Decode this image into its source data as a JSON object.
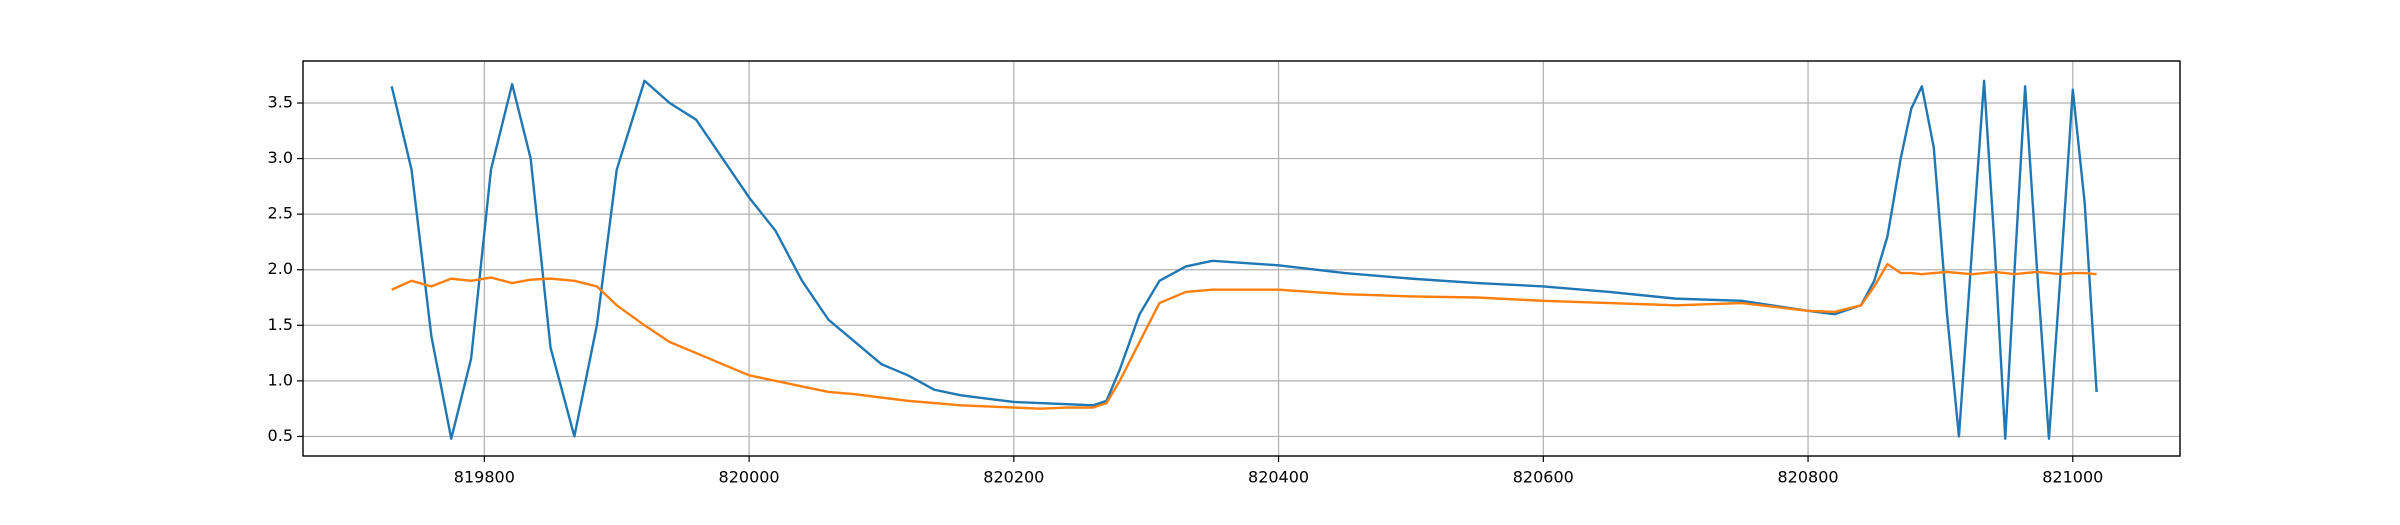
{
  "chart_data": {
    "type": "line",
    "x": [
      819730,
      819745,
      819760,
      819775,
      819790,
      819805,
      819821,
      819835,
      819850,
      819868,
      819885,
      819900,
      819921,
      819940,
      819960,
      819980,
      820000,
      820020,
      820040,
      820060,
      820080,
      820100,
      820120,
      820140,
      820160,
      820180,
      820200,
      820220,
      820240,
      820260,
      820270,
      820280,
      820295,
      820310,
      820330,
      820350,
      820400,
      820450,
      820500,
      820550,
      820600,
      820650,
      820700,
      820750,
      820800,
      820820,
      820840,
      820850,
      820860,
      820870,
      820878,
      820886,
      820895,
      820905,
      820914,
      820924,
      820933,
      820941,
      820949,
      820956,
      820964,
      820973,
      820982,
      820991,
      821000,
      821009,
      821018
    ],
    "series": [
      {
        "color": "#1f77b4",
        "values": [
          3.65,
          2.9,
          1.4,
          0.48,
          1.2,
          2.9,
          3.67,
          3.0,
          1.3,
          0.5,
          1.5,
          2.9,
          3.7,
          3.5,
          3.35,
          3.0,
          2.65,
          2.35,
          1.9,
          1.55,
          1.35,
          1.15,
          1.05,
          0.92,
          0.87,
          0.84,
          0.81,
          0.8,
          0.79,
          0.78,
          0.82,
          1.1,
          1.6,
          1.9,
          2.03,
          2.08,
          2.04,
          1.97,
          1.92,
          1.88,
          1.85,
          1.8,
          1.74,
          1.72,
          1.63,
          1.6,
          1.68,
          1.9,
          2.3,
          3.0,
          3.45,
          3.65,
          3.1,
          1.6,
          0.5,
          2.2,
          3.7,
          2.2,
          0.48,
          2.0,
          3.65,
          2.0,
          0.48,
          2.0,
          3.62,
          2.6,
          0.9
        ]
      },
      {
        "color": "#ff7f0e",
        "values": [
          1.82,
          1.9,
          1.85,
          1.92,
          1.9,
          1.93,
          1.88,
          1.91,
          1.92,
          1.9,
          1.85,
          1.68,
          1.5,
          1.35,
          1.25,
          1.15,
          1.05,
          1.0,
          0.95,
          0.9,
          0.88,
          0.85,
          0.82,
          0.8,
          0.78,
          0.77,
          0.76,
          0.75,
          0.76,
          0.76,
          0.8,
          1.0,
          1.35,
          1.7,
          1.8,
          1.82,
          1.82,
          1.78,
          1.76,
          1.75,
          1.72,
          1.7,
          1.68,
          1.7,
          1.63,
          1.62,
          1.68,
          1.85,
          2.05,
          1.97,
          1.97,
          1.96,
          1.97,
          1.98,
          1.97,
          1.96,
          1.97,
          1.98,
          1.97,
          1.96,
          1.97,
          1.98,
          1.97,
          1.96,
          1.97,
          1.97,
          1.96
        ]
      }
    ],
    "xlim": [
      819663,
      821081
    ],
    "xticks": [
      819800,
      820000,
      820200,
      820400,
      820600,
      820800,
      821000
    ],
    "ylim": [
      0.324,
      3.878
    ],
    "yticks": [
      0.5,
      {
        "value": 1,
        "label": "1.0"
      },
      1.5,
      {
        "value": 2,
        "label": "2.0"
      },
      2.5,
      {
        "value": 3,
        "label": "3.0"
      },
      3.5
    ],
    "grid": true
  }
}
